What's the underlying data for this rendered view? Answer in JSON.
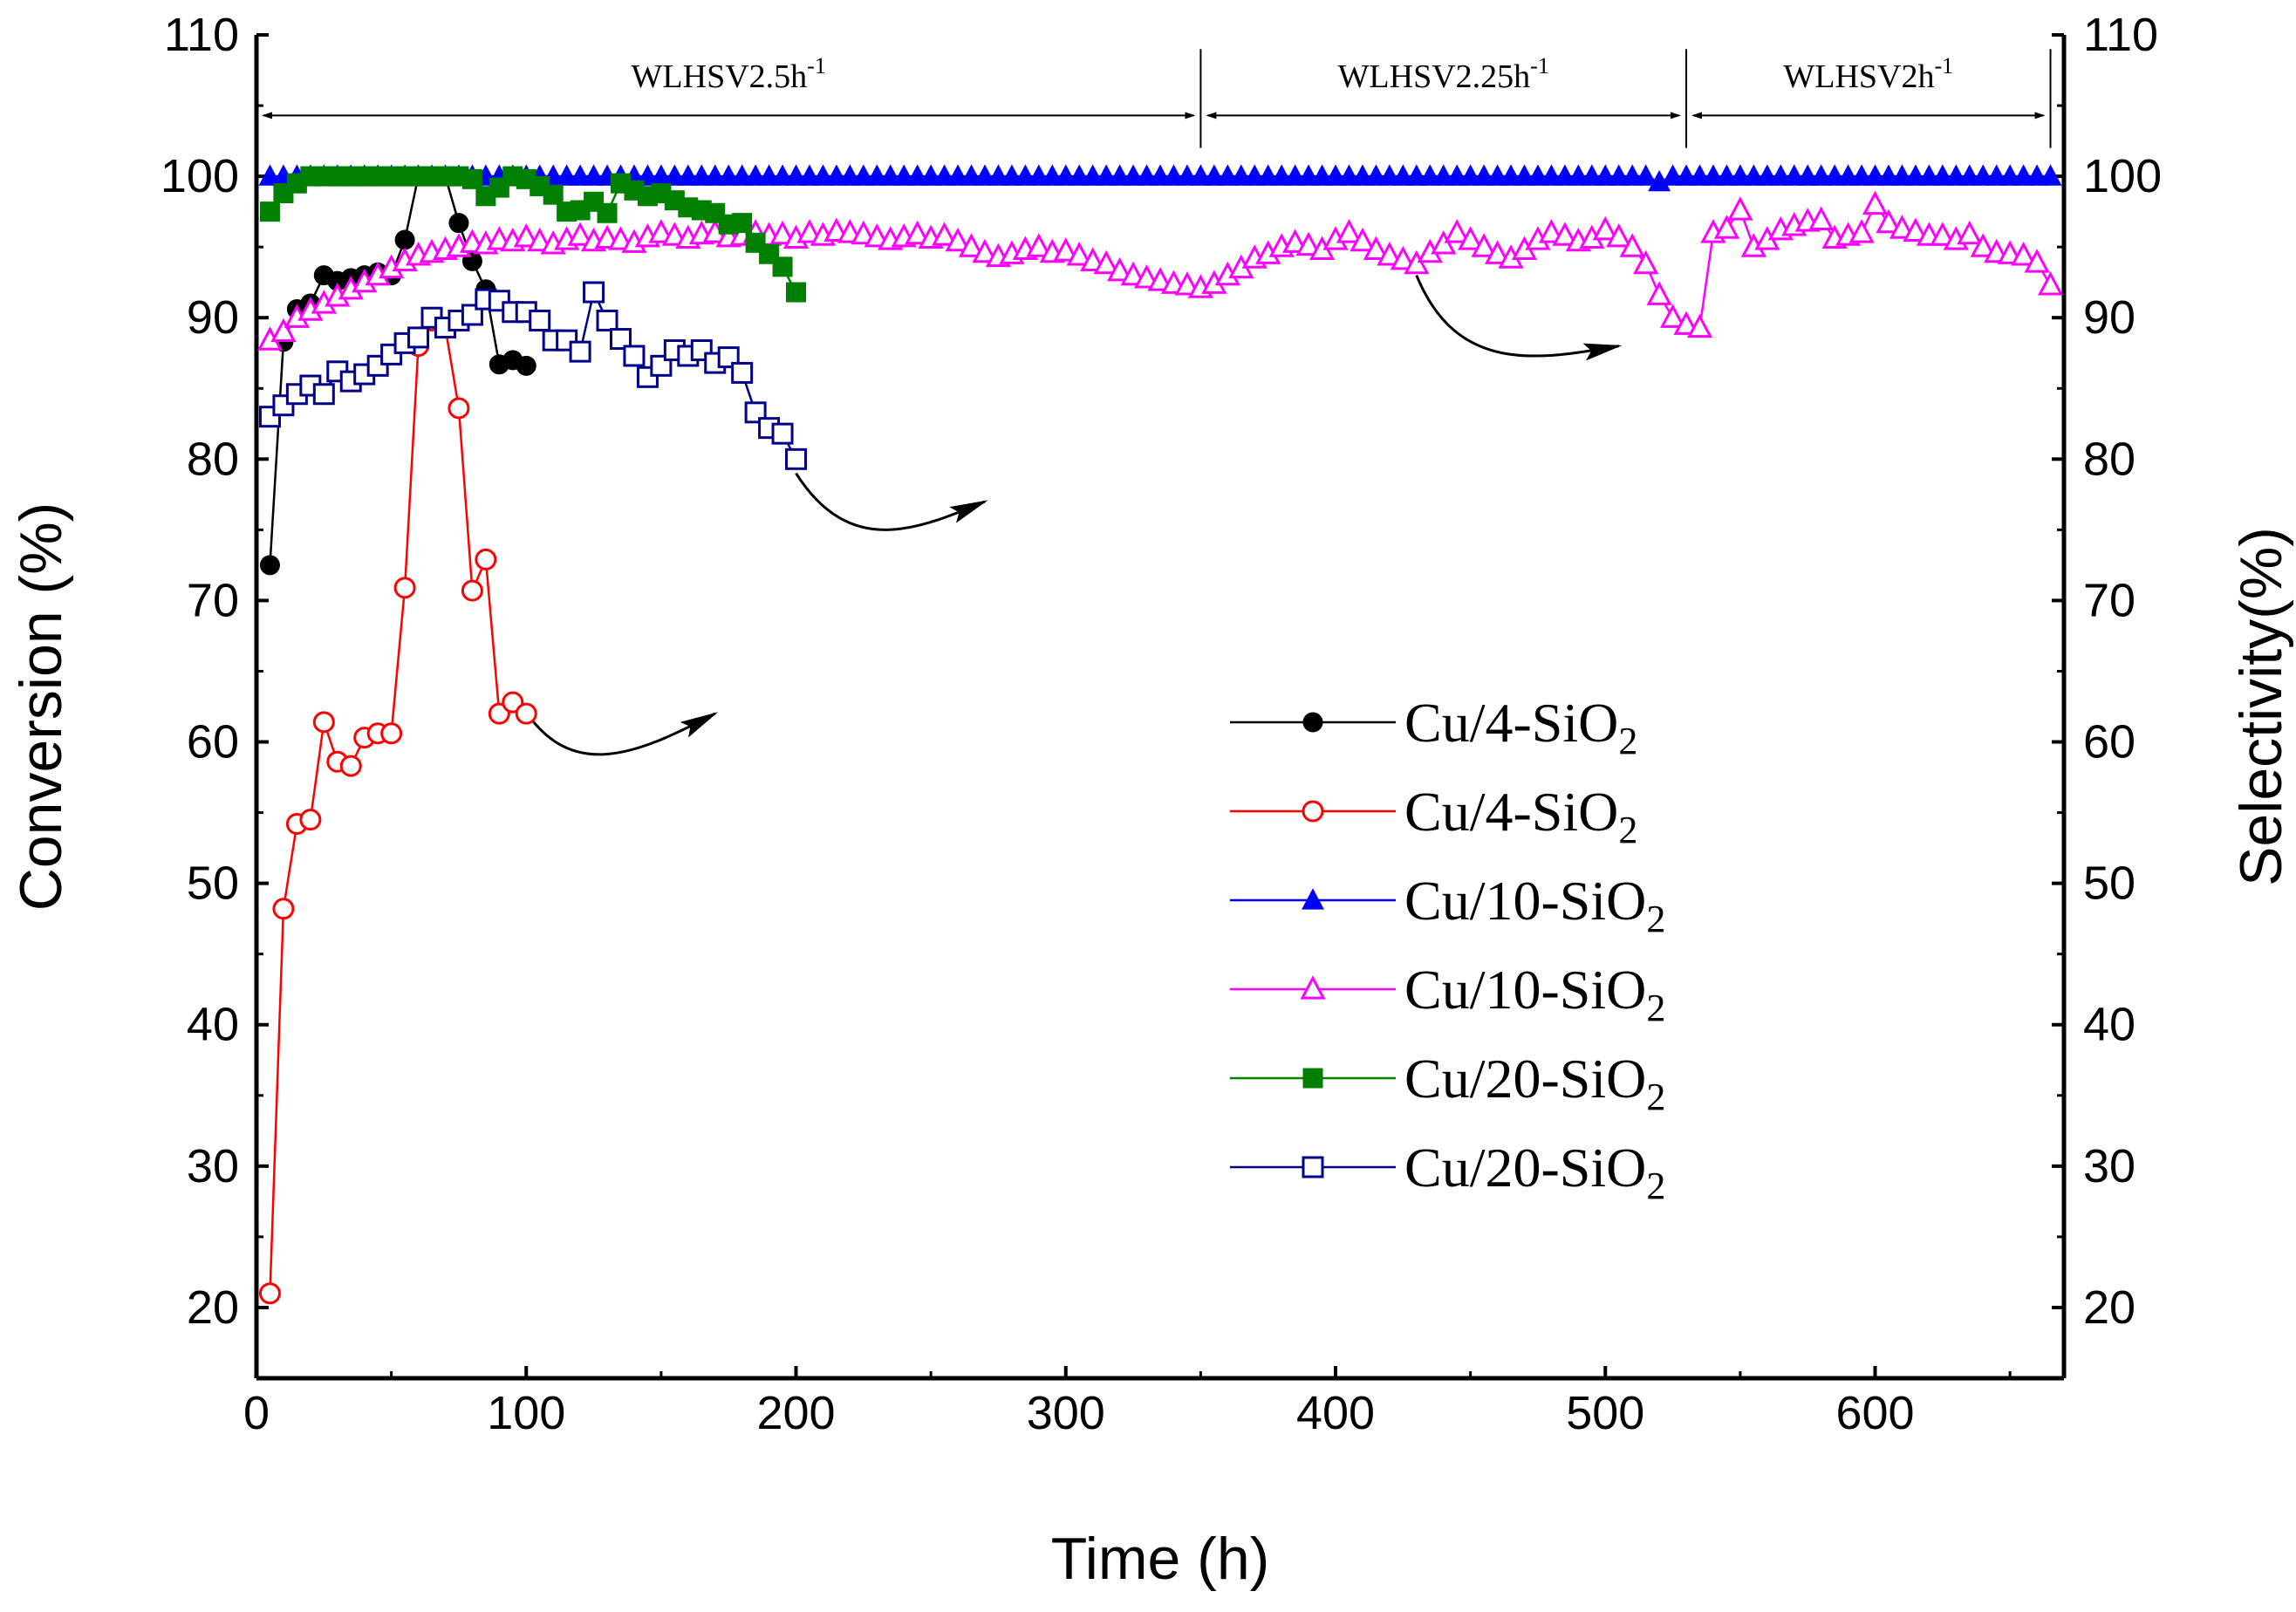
{
  "chart_data": {
    "type": "line",
    "xlabel": "Time (h)",
    "ylabel_left": "Conversion (%)",
    "ylabel_right": "Selectivity(%)",
    "xlim": [
      0,
      670
    ],
    "ylim": [
      15,
      110
    ],
    "x_ticks": [
      0,
      100,
      200,
      300,
      400,
      500,
      600
    ],
    "y_ticks": [
      20,
      30,
      40,
      50,
      60,
      70,
      80,
      90,
      100,
      110
    ],
    "regions": [
      {
        "label_main": "WLHSV2.5h",
        "label_sup": "-1",
        "x_start": 0,
        "x_end": 350
      },
      {
        "label_main": "WLHSV2.25h",
        "label_sup": "-1",
        "x_start": 350,
        "x_end": 530
      },
      {
        "label_main": "WLHSV2h",
        "label_sup": "-1",
        "x_start": 530,
        "x_end": 665
      }
    ],
    "curved_arrows": [
      {
        "from": [
          97,
          63
        ],
        "ctrl1": [
          115,
          57
        ],
        "ctrl2": [
          140,
          59
        ],
        "to": [
          170,
          62
        ]
      },
      {
        "from": [
          200,
          79
        ],
        "ctrl1": [
          220,
          73
        ],
        "ctrl2": [
          245,
          75
        ],
        "to": [
          270,
          77
        ]
      },
      {
        "from": [
          430,
          93
        ],
        "ctrl1": [
          445,
          86
        ],
        "ctrl2": [
          475,
          87
        ],
        "to": [
          505,
          88
        ]
      }
    ],
    "series": [
      {
        "name": "Cu/4-SiO2",
        "legend_main": "Cu/4-SiO",
        "legend_sub": "2",
        "color": "#000000",
        "marker": "circle",
        "filled": true,
        "x": [
          5,
          10,
          15,
          20,
          25,
          30,
          35,
          40,
          45,
          50,
          55,
          60,
          65,
          70,
          75,
          80,
          85,
          90,
          95,
          100
        ],
        "y": [
          72.5,
          88.3,
          90.6,
          91,
          93,
          92.6,
          92.8,
          93,
          93.2,
          93,
          95.5,
          100,
          100,
          100,
          96.7,
          94,
          92,
          86.7,
          87,
          86.6
        ]
      },
      {
        "name": "Cu/4-SiO2",
        "legend_main": "Cu/4-SiO",
        "legend_sub": "2",
        "color": "#ff0000",
        "marker": "circle",
        "filled": false,
        "x": [
          5,
          10,
          15,
          20,
          25,
          30,
          35,
          40,
          45,
          50,
          55,
          60,
          65,
          70,
          75,
          80,
          85,
          90,
          95,
          100
        ],
        "y": [
          21,
          48.2,
          54.2,
          54.5,
          61.4,
          58.6,
          58.3,
          60.3,
          60.6,
          60.6,
          70.9,
          88,
          89.8,
          89.3,
          83.6,
          70.7,
          72.9,
          62,
          62.8,
          62
        ]
      },
      {
        "name": "Cu/10-SiO2",
        "legend_main": "Cu/10-SiO",
        "legend_sub": "2",
        "color": "#0000ff",
        "marker": "triangle",
        "filled": true,
        "x": [
          5,
          10,
          15,
          20,
          25,
          30,
          35,
          40,
          45,
          50,
          55,
          60,
          65,
          70,
          75,
          80,
          85,
          90,
          95,
          100,
          105,
          110,
          115,
          120,
          125,
          130,
          135,
          140,
          145,
          150,
          155,
          160,
          165,
          170,
          175,
          180,
          185,
          190,
          195,
          200,
          205,
          210,
          215,
          220,
          225,
          230,
          235,
          240,
          245,
          250,
          255,
          260,
          265,
          270,
          275,
          280,
          285,
          290,
          295,
          300,
          305,
          310,
          315,
          320,
          325,
          330,
          335,
          340,
          345,
          350,
          355,
          360,
          365,
          370,
          375,
          380,
          385,
          390,
          395,
          400,
          405,
          410,
          415,
          420,
          425,
          430,
          435,
          440,
          445,
          450,
          455,
          460,
          465,
          470,
          475,
          480,
          485,
          490,
          495,
          500,
          505,
          510,
          515,
          520,
          525,
          530,
          535,
          540,
          545,
          550,
          555,
          560,
          565,
          570,
          575,
          580,
          585,
          590,
          595,
          600,
          605,
          610,
          615,
          620,
          625,
          630,
          635,
          640,
          645,
          650,
          655,
          660,
          665
        ],
        "y": [
          100,
          100,
          100,
          100,
          100,
          100,
          100,
          100,
          100,
          100,
          100,
          100,
          100,
          100,
          100,
          100,
          100,
          100,
          100,
          100,
          100,
          100,
          100,
          100,
          100,
          100,
          100,
          100,
          100,
          100,
          100,
          100,
          100,
          100,
          100,
          100,
          100,
          100,
          100,
          100,
          100,
          100,
          100,
          100,
          100,
          100,
          100,
          100,
          100,
          100,
          100,
          100,
          100,
          100,
          100,
          100,
          100,
          100,
          100,
          100,
          100,
          100,
          100,
          100,
          100,
          100,
          100,
          100,
          100,
          100,
          100,
          100,
          100,
          100,
          100,
          100,
          100,
          100,
          100,
          100,
          100,
          100,
          100,
          100,
          100,
          100,
          100,
          100,
          100,
          100,
          100,
          100,
          100,
          100,
          100,
          100,
          100,
          100,
          100,
          100,
          100,
          100,
          100,
          99.6,
          100,
          100,
          100,
          100,
          100,
          100,
          100,
          100,
          100,
          100,
          100,
          100,
          100,
          100,
          100,
          100,
          100,
          100,
          100,
          100,
          100,
          100,
          100,
          100,
          100,
          100,
          100,
          100,
          100
        ]
      },
      {
        "name": "Cu/10-SiO2",
        "legend_main": "Cu/10-SiO",
        "legend_sub": "2",
        "color": "#ff00ff",
        "marker": "triangle",
        "filled": false,
        "x": [
          5,
          10,
          15,
          20,
          25,
          30,
          35,
          40,
          45,
          50,
          55,
          60,
          65,
          70,
          75,
          80,
          85,
          90,
          95,
          100,
          105,
          110,
          115,
          120,
          125,
          130,
          135,
          140,
          145,
          150,
          155,
          160,
          165,
          170,
          175,
          180,
          185,
          190,
          195,
          200,
          205,
          210,
          215,
          220,
          225,
          230,
          235,
          240,
          245,
          250,
          255,
          260,
          265,
          270,
          275,
          280,
          285,
          290,
          295,
          300,
          305,
          310,
          315,
          320,
          325,
          330,
          335,
          340,
          345,
          350,
          355,
          360,
          365,
          370,
          375,
          380,
          385,
          390,
          395,
          400,
          405,
          410,
          415,
          420,
          425,
          430,
          435,
          440,
          445,
          450,
          455,
          460,
          465,
          470,
          475,
          480,
          485,
          490,
          495,
          500,
          505,
          510,
          515,
          520,
          525,
          530,
          535,
          540,
          545,
          550,
          555,
          560,
          565,
          570,
          575,
          580,
          585,
          590,
          595,
          600,
          605,
          610,
          615,
          620,
          625,
          630,
          635,
          640,
          645,
          650,
          655,
          660,
          665
        ],
        "y": [
          88.4,
          89,
          90,
          90.5,
          91,
          91.5,
          92,
          92.5,
          93,
          93.5,
          94,
          94.4,
          94.6,
          94.8,
          95,
          95.3,
          95.2,
          95.5,
          95.4,
          95.7,
          95.4,
          95.2,
          95.5,
          95.8,
          95.4,
          95.6,
          95.5,
          95.3,
          95.7,
          96,
          95.8,
          95.6,
          95.9,
          96,
          95.7,
          95.8,
          96,
          95.8,
          95.9,
          95.6,
          96,
          95.8,
          96.1,
          96,
          95.9,
          95.7,
          95.5,
          95.7,
          95.9,
          95.6,
          95.8,
          95.4,
          95,
          94.6,
          94.3,
          94.5,
          94.8,
          95,
          94.6,
          94.7,
          94.4,
          94,
          93.8,
          93.3,
          93,
          92.8,
          92.6,
          92.4,
          92.3,
          92.1,
          92.4,
          93,
          93.5,
          94.2,
          94.5,
          95,
          95.3,
          95.1,
          94.8,
          95.5,
          96,
          95.4,
          94.8,
          94.4,
          94.1,
          93.8,
          94.6,
          95.2,
          96,
          95.5,
          95,
          94.5,
          94.2,
          94.8,
          95.5,
          96,
          95.8,
          95.4,
          95.6,
          96.2,
          95.7,
          95,
          93.8,
          91.6,
          90,
          89.5,
          89.3,
          96,
          96.3,
          97.6,
          95,
          95.5,
          96.2,
          96.5,
          96.8,
          96.9,
          95.6,
          95.8,
          96,
          98,
          96.7,
          96.3,
          96.1,
          95.8,
          95.8,
          95.5,
          95.9,
          95,
          94.6,
          94.5,
          94.4,
          93.9,
          92.3
        ]
      },
      {
        "name": "Cu/20-SiO2",
        "legend_main": "Cu/20-SiO",
        "legend_sub": "2",
        "color": "#008000",
        "marker": "square",
        "filled": true,
        "x": [
          5,
          10,
          15,
          20,
          25,
          30,
          35,
          40,
          45,
          50,
          55,
          60,
          65,
          70,
          75,
          80,
          85,
          90,
          95,
          100,
          105,
          110,
          115,
          120,
          125,
          130,
          135,
          140,
          145,
          150,
          155,
          160,
          165,
          170,
          175,
          180,
          185,
          190,
          195,
          200
        ],
        "y": [
          97.5,
          98.8,
          99.5,
          100,
          100,
          100,
          100,
          100,
          100,
          100,
          100,
          100,
          100,
          100,
          100,
          99.8,
          98.6,
          99.2,
          100,
          99.8,
          99.3,
          98.7,
          97.5,
          97.6,
          98.2,
          97.4,
          99.5,
          99,
          98.6,
          98.8,
          98.3,
          97.8,
          97.6,
          97.4,
          96.6,
          96.7,
          95.3,
          94.5,
          93.6,
          91.8
        ]
      },
      {
        "name": "Cu/20-SiO2",
        "legend_main": "Cu/20-SiO",
        "legend_sub": "2",
        "color": "#00008b",
        "marker": "square",
        "filled": false,
        "x": [
          5,
          10,
          15,
          20,
          25,
          30,
          35,
          40,
          45,
          50,
          55,
          60,
          65,
          70,
          75,
          80,
          85,
          90,
          95,
          100,
          105,
          110,
          115,
          120,
          125,
          130,
          135,
          140,
          145,
          150,
          155,
          160,
          165,
          170,
          175,
          180,
          185,
          190,
          195,
          200
        ],
        "y": [
          83,
          83.8,
          84.6,
          85.2,
          84.6,
          86.2,
          85.5,
          86,
          86.6,
          87.4,
          88.2,
          88.6,
          90,
          89.3,
          89.8,
          90.2,
          91.3,
          91.2,
          90.4,
          90.4,
          89.8,
          88.4,
          88.4,
          87.6,
          91.8,
          89.8,
          88.5,
          87.3,
          85.8,
          86.6,
          87.7,
          87.3,
          87.7,
          86.8,
          87.2,
          86.1,
          83.3,
          82.2,
          81.8,
          80
        ]
      }
    ]
  }
}
